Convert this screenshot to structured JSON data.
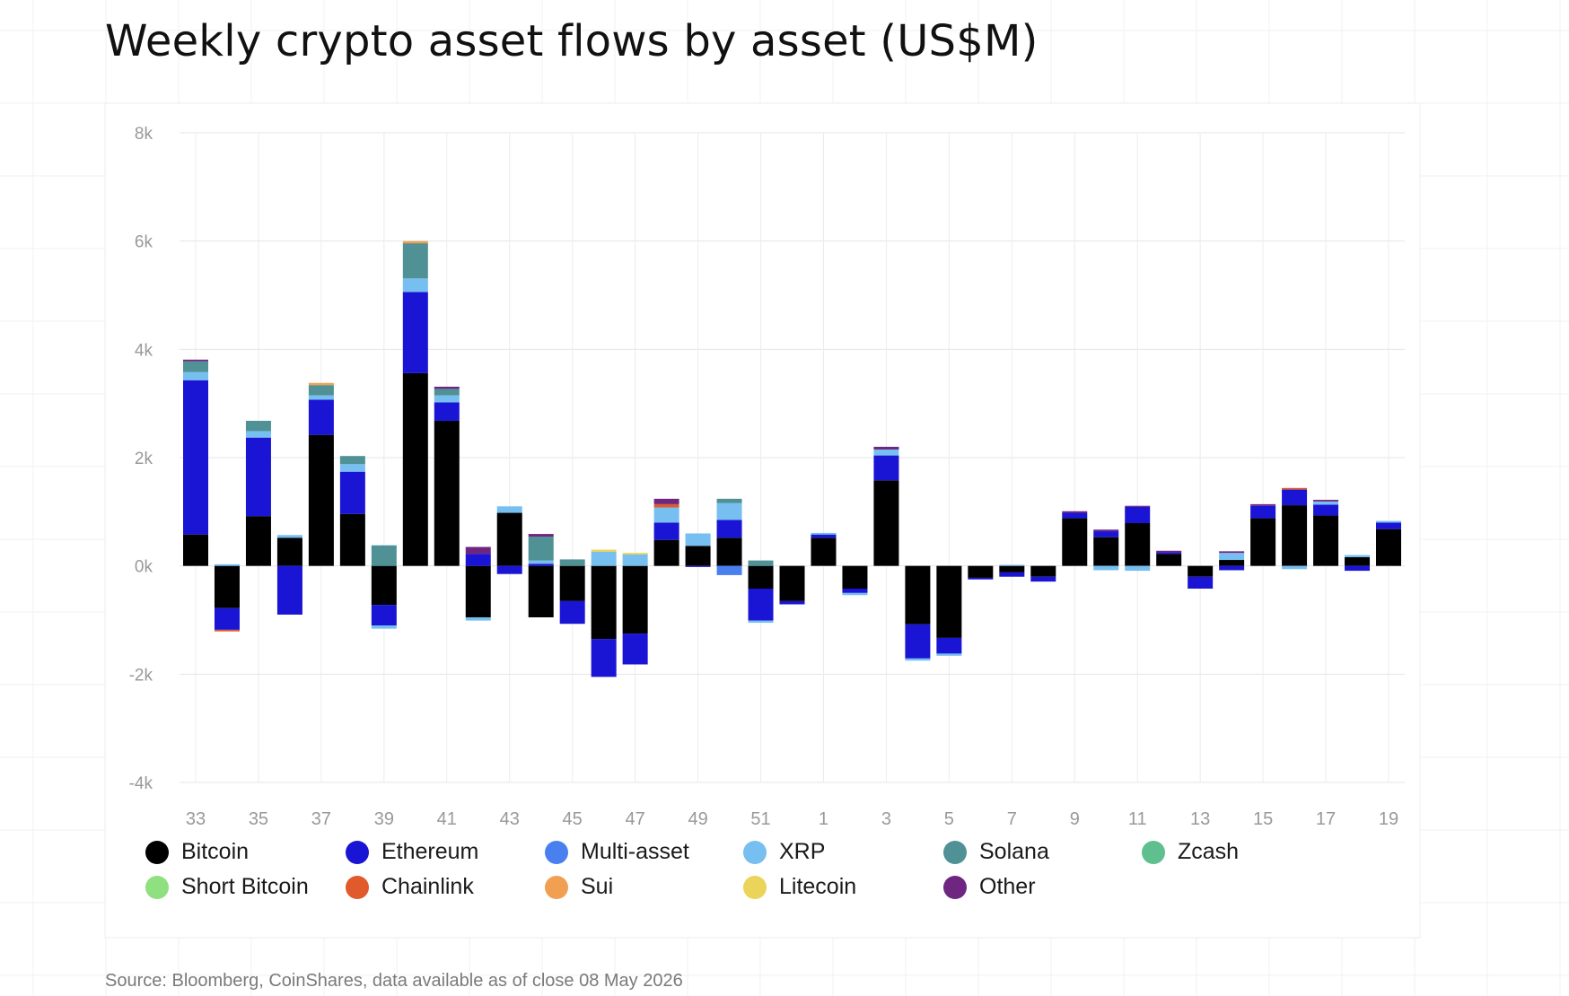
{
  "title": "Weekly crypto asset flows by asset (US$M)",
  "source": "Source: Bloomberg, CoinShares, data available as of close 08 May 2026",
  "chart_data": {
    "type": "bar",
    "stacked": true,
    "title": "Weekly crypto asset flows by asset (US$M)",
    "xlabel": "",
    "ylabel": "",
    "ylim": [
      -4000,
      8000
    ],
    "yticks": [
      -4000,
      -2000,
      0,
      2000,
      4000,
      6000,
      8000
    ],
    "ytick_labels": [
      "-4k",
      "-2k",
      "0k",
      "2k",
      "4k",
      "6k",
      "8k"
    ],
    "categories": [
      "33",
      "34",
      "35",
      "36",
      "37",
      "38",
      "39",
      "40",
      "41",
      "42",
      "43",
      "44",
      "45",
      "46",
      "47",
      "48",
      "49",
      "50",
      "51",
      "52",
      "1",
      "2",
      "3",
      "4",
      "5",
      "6",
      "7",
      "8",
      "9",
      "10",
      "11",
      "12",
      "13",
      "14",
      "15",
      "16",
      "17",
      "18",
      "19"
    ],
    "xtick_labels": [
      "33",
      "35",
      "37",
      "39",
      "41",
      "43",
      "45",
      "47",
      "49",
      "51",
      "1",
      "3",
      "5",
      "7",
      "9",
      "11",
      "13",
      "15",
      "17",
      "19"
    ],
    "grid": true,
    "legend_position": "bottom",
    "series": [
      {
        "name": "Bitcoin",
        "color": "#000000",
        "values": [
          580,
          -780,
          920,
          520,
          2420,
          960,
          -720,
          3560,
          2680,
          -950,
          980,
          -950,
          -650,
          -1350,
          -1250,
          480,
          370,
          520,
          -420,
          -650,
          520,
          -420,
          1580,
          -1080,
          -1330,
          -220,
          -120,
          -200,
          880,
          530,
          790,
          220,
          -200,
          110,
          880,
          1120,
          930,
          160,
          680
        ]
      },
      {
        "name": "Ethereum",
        "color": "#1a14d4",
        "values": [
          2850,
          -400,
          1450,
          -900,
          650,
          780,
          -380,
          1500,
          340,
          220,
          -150,
          40,
          -420,
          -700,
          -570,
          320,
          -20,
          330,
          -590,
          -60,
          60,
          -80,
          460,
          -630,
          -290,
          -30,
          -80,
          -90,
          100,
          110,
          300,
          30,
          -220,
          -80,
          230,
          290,
          200,
          -90,
          120
        ]
      },
      {
        "name": "Multi-asset",
        "color": "#4a7ff0",
        "values": [
          0,
          0,
          0,
          0,
          0,
          0,
          0,
          0,
          0,
          0,
          0,
          0,
          0,
          0,
          0,
          0,
          0,
          -170,
          0,
          0,
          0,
          0,
          0,
          0,
          0,
          0,
          0,
          0,
          0,
          0,
          0,
          0,
          0,
          0,
          0,
          0,
          0,
          0,
          0
        ]
      },
      {
        "name": "XRP",
        "color": "#76bff0",
        "values": [
          150,
          30,
          120,
          50,
          80,
          140,
          -60,
          250,
          130,
          -60,
          120,
          60,
          0,
          260,
          210,
          280,
          230,
          310,
          -40,
          0,
          30,
          -40,
          110,
          -40,
          -40,
          0,
          20,
          0,
          0,
          -80,
          -90,
          0,
          0,
          130,
          0,
          -60,
          60,
          40,
          30
        ]
      },
      {
        "name": "Solana",
        "color": "#4f9195",
        "values": [
          200,
          0,
          190,
          0,
          190,
          150,
          380,
          650,
          120,
          0,
          0,
          440,
          120,
          0,
          0,
          0,
          0,
          80,
          100,
          0,
          0,
          0,
          0,
          0,
          0,
          0,
          0,
          0,
          0,
          0,
          0,
          0,
          0,
          0,
          0,
          0,
          0,
          0,
          0
        ]
      },
      {
        "name": "Zcash",
        "color": "#5fbf8f",
        "values": [
          0,
          0,
          0,
          0,
          0,
          0,
          0,
          0,
          0,
          0,
          0,
          0,
          0,
          0,
          0,
          0,
          0,
          0,
          0,
          0,
          0,
          0,
          0,
          0,
          0,
          0,
          0,
          0,
          0,
          0,
          0,
          0,
          0,
          0,
          0,
          0,
          0,
          0,
          0
        ]
      },
      {
        "name": "Short Bitcoin",
        "color": "#8fe07f",
        "values": [
          0,
          0,
          0,
          0,
          0,
          0,
          0,
          0,
          0,
          0,
          0,
          0,
          0,
          0,
          0,
          0,
          0,
          0,
          0,
          0,
          0,
          0,
          0,
          0,
          0,
          0,
          0,
          0,
          0,
          0,
          0,
          0,
          0,
          0,
          0,
          0,
          0,
          0,
          0
        ]
      },
      {
        "name": "Chainlink",
        "color": "#e05a2c",
        "values": [
          0,
          -30,
          0,
          0,
          0,
          0,
          0,
          0,
          0,
          0,
          0,
          0,
          0,
          0,
          0,
          60,
          0,
          0,
          0,
          0,
          0,
          0,
          0,
          0,
          0,
          0,
          0,
          0,
          0,
          0,
          0,
          0,
          0,
          0,
          0,
          30,
          0,
          0,
          0
        ]
      },
      {
        "name": "Sui",
        "color": "#f0a050",
        "values": [
          0,
          0,
          0,
          0,
          40,
          0,
          0,
          40,
          0,
          0,
          0,
          0,
          0,
          0,
          0,
          0,
          0,
          0,
          0,
          0,
          0,
          0,
          0,
          0,
          0,
          0,
          0,
          0,
          0,
          0,
          0,
          0,
          0,
          0,
          0,
          0,
          0,
          0,
          0
        ]
      },
      {
        "name": "Litecoin",
        "color": "#ead45a",
        "values": [
          0,
          0,
          0,
          0,
          0,
          0,
          0,
          0,
          0,
          0,
          0,
          0,
          0,
          40,
          30,
          0,
          0,
          0,
          0,
          0,
          0,
          0,
          0,
          0,
          0,
          0,
          0,
          0,
          0,
          0,
          0,
          0,
          0,
          0,
          0,
          0,
          0,
          0,
          0
        ]
      },
      {
        "name": "Other",
        "color": "#6e2680",
        "values": [
          30,
          0,
          0,
          0,
          0,
          0,
          0,
          0,
          40,
          130,
          0,
          50,
          0,
          0,
          0,
          100,
          0,
          0,
          0,
          0,
          0,
          0,
          50,
          0,
          0,
          0,
          0,
          0,
          30,
          30,
          20,
          30,
          0,
          30,
          30,
          0,
          30,
          0,
          0
        ]
      }
    ]
  }
}
